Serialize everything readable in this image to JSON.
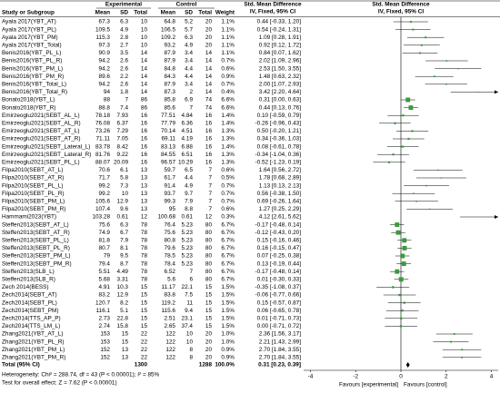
{
  "chart_data": {
    "type": "forest",
    "headers": {
      "study": "Study or Subgroup",
      "experimental": "Experimental",
      "control": "Control",
      "mean": "Mean",
      "sd": "SD",
      "total": "Total",
      "weight": "Weight",
      "effect": "Std. Mean Difference",
      "method": "IV, Fixed, 95% CI"
    },
    "rows": [
      [
        "Ayala 2017(YBT_AT)",
        "67.3",
        "6.3",
        "10",
        "64.8",
        "5.2",
        "20"
      ],
      [
        "Ayala 2017(YBT_PL)",
        "109.5",
        "4.9",
        "10",
        "106.5",
        "5.7",
        "20"
      ],
      [
        "Ayala 2017(YBT_PM)",
        "115.3",
        "2.8",
        "10",
        "109.2",
        "6.3",
        "20"
      ],
      [
        "Ayala 2017(YBT_Total)",
        "97.3",
        "2.7",
        "10",
        "93.2",
        "4.9",
        "20"
      ],
      [
        "Benis2016(YBT_PL_L)",
        "90.9",
        "3.5",
        "14",
        "87.9",
        "3.4",
        "14"
      ],
      [
        "Benis2016(YBT_PL_R)",
        "94.2",
        "2.6",
        "14",
        "87.9",
        "3.4",
        "14"
      ],
      [
        "Benis2016(YBT_PM_L)",
        "94.2",
        "2.6",
        "14",
        "84.8",
        "4.4",
        "14"
      ],
      [
        "Benis2016(YBT_PM_R)",
        "89.6",
        "2.2",
        "14",
        "84.3",
        "4.4",
        "14"
      ],
      [
        "Benis2016(YBT_Total_L)",
        "94.2",
        "2.6",
        "14",
        "87.9",
        "3.4",
        "14"
      ],
      [
        "Benis2016(YBT_Total_R)",
        "94",
        "1.8",
        "14",
        "87.3",
        "2",
        "14"
      ],
      [
        "Bonato2018(YBT_L)",
        "88",
        "7",
        "86",
        "85.8",
        "6.9",
        "74"
      ],
      [
        "Bonato2018(YBT_R)",
        "88.8",
        "7.4",
        "86",
        "85.6",
        "7",
        "74"
      ],
      [
        "Emirzeoglu2021(SEBT_AL_L)",
        "78.18",
        "7.93",
        "16",
        "77.51",
        "4.84",
        "16"
      ],
      [
        "Emirzeoglu2021(SEBT_AL_R)",
        "76.08",
        "6.37",
        "16",
        "77.79",
        "6.36",
        "16"
      ],
      [
        "Emirzeoglu2021(SEBT_AT_L)",
        "73.26",
        "7.29",
        "16",
        "70.14",
        "4.51",
        "16"
      ],
      [
        "Emirzeoglu2021(SEBT_AT_R)",
        "71.11",
        "7.05",
        "16",
        "69.11",
        "4.19",
        "16"
      ],
      [
        "Emirzeoglu2021(SEBT_Lateral_L)",
        "83.78",
        "8.42",
        "16",
        "83.13",
        "6.88",
        "16"
      ],
      [
        "Emirzeoglu2021(SEBT_Lateral_R)",
        "81.76",
        "9.22",
        "16",
        "84.55",
        "6.51",
        "16"
      ],
      [
        "Emirzeoglu2021(SEBT_PL_L)",
        "88.07",
        "20.09",
        "16",
        "96.57",
        "10.29",
        "16"
      ],
      [
        "Filpa2010(SEBT_AT_L)",
        "70.6",
        "6.1",
        "13",
        "59.7",
        "6.5",
        "7"
      ],
      [
        "Filpa2010(SEBT_AT_R)",
        "71.7",
        "5.8",
        "13",
        "61.7",
        "4.4",
        "7"
      ],
      [
        "Filpa2010(SEBT_PL_L)",
        "99.2",
        "7.3",
        "13",
        "91.4",
        "4.9",
        "7"
      ],
      [
        "Filpa2010(SEBT_PL_R)",
        "99.2",
        "10",
        "13",
        "93.7",
        "9.7",
        "7"
      ],
      [
        "Filpa2010(SEBT_PM_L)",
        "105.6",
        "12.9",
        "13",
        "99.3",
        "7.9",
        "7"
      ],
      [
        "Filpa2010(SEBT_PM_R)",
        "107.4",
        "9.6",
        "13",
        "95",
        "8.8",
        "7"
      ],
      [
        "Hammami2023(YBT)",
        "103.28",
        "0.61",
        "12",
        "100.68",
        "0.61",
        "12"
      ],
      [
        "Steffen2013(SEBT_AT_L)",
        "75.6",
        "6.3",
        "78",
        "76.4",
        "5.23",
        "80"
      ],
      [
        "Steffen2013(SEBT_AT_R)",
        "74.9",
        "6.7",
        "78",
        "75.6",
        "5.23",
        "80"
      ],
      [
        "Steffen2013(SEBT_PL_L)",
        "81.8",
        "7.9",
        "78",
        "80.8",
        "5.23",
        "80"
      ],
      [
        "Steffen2013(SEBT_PL_R)",
        "80.7",
        "8.1",
        "78",
        "79.6",
        "5.23",
        "80"
      ],
      [
        "Steffen2013(SEBT_PM_L)",
        "79",
        "9.5",
        "78",
        "78.5",
        "5.23",
        "80"
      ],
      [
        "Steffen2013(SEBT_PM_R)",
        "79.4",
        "8.7",
        "78",
        "78.4",
        "5.23",
        "80"
      ],
      [
        "Steffen2013(SLB_L)",
        "5.51",
        "4.49",
        "78",
        "6.52",
        "7",
        "80"
      ],
      [
        "Steffen2013(SLB_R)",
        "5.68",
        "3.31",
        "78",
        "5.6",
        "6",
        "80"
      ],
      [
        "Zech 2014(BESS)",
        "4.91",
        "10.3",
        "15",
        "11.17",
        "22.1",
        "15"
      ],
      [
        "Zech2014(SEBT_AT)",
        "83.2",
        "12.9",
        "15",
        "83.8",
        "7.5",
        "15"
      ],
      [
        "Zech2014(SEBT_PL)",
        "120.7",
        "8.2",
        "15",
        "119.2",
        "11",
        "15"
      ],
      [
        "Zech2014(SEBT_PM)",
        "116.1",
        "5.1",
        "15",
        "115.6",
        "9.4",
        "15"
      ],
      [
        "Zech2014(TTS_AP_P)",
        "2.73",
        "22.8",
        "15",
        "2.51",
        "23.1",
        "15"
      ],
      [
        "Zech2014(TTS_LM_L)",
        "2.74",
        "15.8",
        "15",
        "2.65",
        "37.4",
        "15"
      ],
      [
        "Zhang2021(YBT_AT_L)",
        "153",
        "15",
        "22",
        "122",
        "10",
        "20"
      ],
      [
        "Zhang2021(YBT_PL_R)",
        "153",
        "15",
        "22",
        "122",
        "10",
        "20"
      ],
      [
        "Zhang2021(YBT_PM_L)",
        "152",
        "13",
        "22",
        "122",
        "8",
        "20"
      ],
      [
        "Zhang2021(YBT_PM_R)",
        "152",
        "13",
        "22",
        "122",
        "8",
        "20"
      ]
    ],
    "weights": [
      1.1,
      1.1,
      1.1,
      1.1,
      1.1,
      0.7,
      0.6,
      0.9,
      0.7,
      0.4,
      6.6,
      6.6,
      1.4,
      1.4,
      1.3,
      1.3,
      1.4,
      1.3,
      1.3,
      0.6,
      0.5,
      0.7,
      0.7,
      0.7,
      0.6,
      0.3,
      6.7,
      6.7,
      6.7,
      6.7,
      6.7,
      6.7,
      6.7,
      6.7,
      1.5,
      1.5,
      1.5,
      1.5,
      1.5,
      1.5,
      1.0,
      1.0,
      0.9,
      0.9
    ],
    "weight_labels": [
      "1.1%",
      "1.1%",
      "1.1%",
      "1.1%",
      "1.1%",
      "0.7%",
      "0.6%",
      "0.9%",
      "0.7%",
      "0.4%",
      "6.6%",
      "6.6%",
      "1.4%",
      "1.4%",
      "1.3%",
      "1.3%",
      "1.4%",
      "1.3%",
      "1.3%",
      "0.6%",
      "0.5%",
      "0.7%",
      "0.7%",
      "0.7%",
      "0.6%",
      "0.3%",
      "6.7%",
      "6.7%",
      "6.7%",
      "6.7%",
      "6.7%",
      "6.7%",
      "6.7%",
      "6.7%",
      "1.5%",
      "1.5%",
      "1.5%",
      "1.5%",
      "1.5%",
      "1.5%",
      "1.0%",
      "1.0%",
      "0.9%",
      "0.9%"
    ],
    "values": [
      0.44,
      0.54,
      1.09,
      0.92,
      0.84,
      2.02,
      2.53,
      1.48,
      2.0,
      3.42,
      0.31,
      0.44,
      0.1,
      -0.26,
      0.5,
      0.34,
      0.08,
      -0.34,
      -0.52,
      1.64,
      1.78,
      1.13,
      0.56,
      0.69,
      1.27,
      4.12,
      -0.17,
      -0.12,
      0.15,
      0.16,
      0.07,
      0.13,
      -0.17,
      0.01,
      -0.35,
      -0.06,
      0.15,
      0.06,
      0.01,
      0.0,
      2.36,
      2.21,
      2.7,
      2.7
    ],
    "lower": [
      -0.33,
      -0.24,
      0.28,
      0.12,
      0.07,
      1.09,
      1.5,
      0.63,
      1.07,
      2.2,
      0.0,
      0.13,
      -0.59,
      -0.96,
      -0.2,
      -0.36,
      -0.61,
      -1.04,
      -1.23,
      0.56,
      0.68,
      0.13,
      -0.38,
      -0.26,
      0.25,
      2.61,
      -0.48,
      -0.43,
      -0.16,
      -0.15,
      -0.25,
      -0.19,
      -0.48,
      -0.3,
      -1.08,
      -0.77,
      -0.57,
      -0.65,
      -0.71,
      -0.71,
      1.56,
      1.43,
      1.84,
      1.84
    ],
    "upper": [
      1.2,
      1.31,
      1.91,
      1.72,
      1.62,
      2.96,
      3.55,
      2.32,
      2.93,
      4.64,
      0.63,
      0.76,
      0.79,
      0.43,
      1.21,
      1.03,
      0.78,
      0.36,
      0.19,
      2.72,
      2.89,
      2.13,
      1.5,
      1.64,
      2.29,
      5.62,
      0.14,
      0.2,
      0.46,
      0.47,
      0.38,
      0.44,
      0.14,
      0.33,
      0.37,
      0.66,
      0.87,
      0.78,
      0.73,
      0.72,
      3.17,
      2.99,
      3.55,
      3.55
    ],
    "value_labels": [
      "0.44 [-0.33, 1.20]",
      "0.54 [-0.24, 1.31]",
      "1.09 [0.28, 1.91]",
      "0.92 [0.12, 1.72]",
      "0.84 [0.07, 1.62]",
      "2.02 [1.09, 2.96]",
      "2.53 [1.50, 3.55]",
      "1.48 [0.63, 2.32]",
      "2.00 [1.07, 2.93]",
      "3.42 [2.20, 4.64]",
      "0.31 [0.00, 0.63]",
      "0.44 [0.13, 0.76]",
      "0.10 [-0.59, 0.79]",
      "-0.26 [-0.96, 0.43]",
      "0.50 [-0.20, 1.21]",
      "0.34 [-0.36, 1.03]",
      "0.08 [-0.61, 0.78]",
      "-0.34 [-1.04, 0.36]",
      "-0.52 [-1.23, 0.19]",
      "1.64 [0.56, 2.72]",
      "1.78 [0.68, 2.89]",
      "1.13 [0.13, 2.13]",
      "0.56 [-0.38, 1.50]",
      "0.69 [-0.26, 1.64]",
      "1.27 [0.25, 2.29]",
      "4.12 [2.61, 5.62]",
      "-0.17 [-0.48, 0.14]",
      "-0.12 [-0.43, 0.20]",
      "0.15 [-0.16, 0.46]",
      "0.16 [-0.15, 0.47]",
      "0.07 [-0.25, 0.38]",
      "0.13 [-0.19, 0.44]",
      "-0.17 [-0.48, 0.14]",
      "0.01 [-0.30, 0.33]",
      "-0.35 [-1.08, 0.37]",
      "-0.06 [-0.77, 0.66]",
      "0.15 [-0.57, 0.87]",
      "0.06 [-0.65, 0.78]",
      "0.01 [-0.71, 0.73]",
      "0.00 [-0.71, 0.72]",
      "2.36 [1.56, 3.17]",
      "2.21 [1.43, 2.99]",
      "2.70 [1.84, 3.55]",
      "2.70 [1.84, 3.55]"
    ],
    "overall": {
      "label": "Total (95% CI)",
      "exp_total": "1300",
      "ctrl_total": "1288",
      "weight": 100,
      "weight_label": "100.0%",
      "value": 0.31,
      "lower": 0.23,
      "upper": 0.39,
      "value_label": "0.31 [0.23, 0.39]"
    },
    "heterogeneity": "Heterogeneity: Chi² = 288.74, df = 43 (P < 0.00001); I² = 85%",
    "overall_test": "Test for overall effect: Z = 7.62 (P < 0.00001)",
    "xlim": [
      -4.3,
      4.3
    ],
    "xticks": [
      -4,
      -2,
      0,
      2,
      4
    ],
    "favours_left": "Favours [experimental]",
    "favours_right": "Favours [control]",
    "color": "#3a9a3a"
  }
}
